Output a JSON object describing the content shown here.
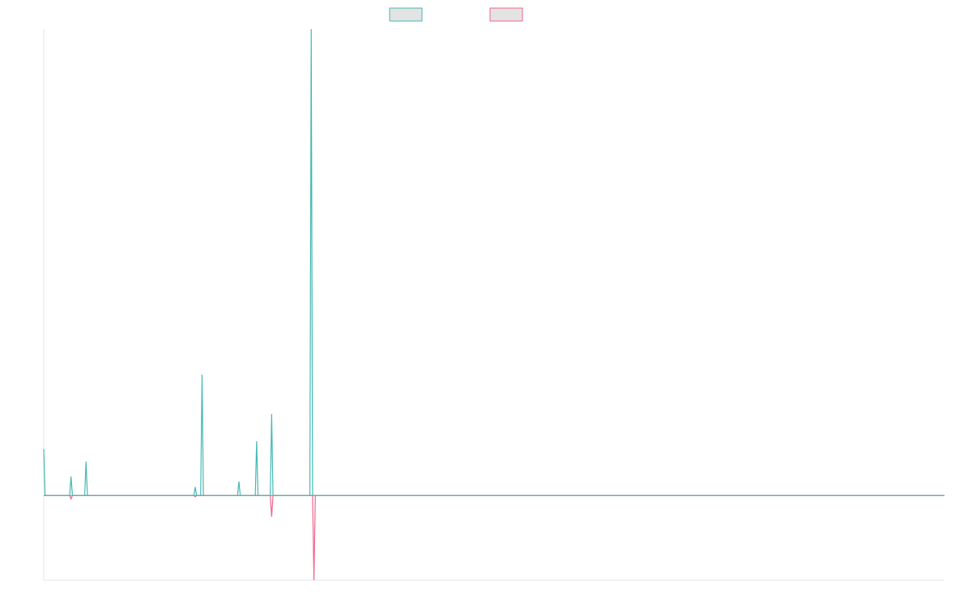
{
  "chart_data": {
    "type": "line",
    "title": "",
    "xlabel": "",
    "ylabel": "",
    "legend": {
      "placement": "top-center"
    },
    "grid": false,
    "x_range": [
      0,
      330
    ],
    "ylim": [
      -20,
      110
    ],
    "series": [
      {
        "color": "#45b8b5",
        "legend_fill": "#e3e3e3",
        "points": [
          [
            0,
            11
          ],
          [
            0.5,
            0
          ],
          [
            9.5,
            0
          ],
          [
            10,
            4.5
          ],
          [
            10.5,
            0
          ],
          [
            15,
            0
          ],
          [
            15.5,
            8
          ],
          [
            16,
            0
          ],
          [
            55,
            0
          ],
          [
            55.5,
            2
          ],
          [
            56,
            0
          ],
          [
            57.5,
            0
          ],
          [
            58,
            28.5
          ],
          [
            58.5,
            0
          ],
          [
            71,
            0
          ],
          [
            71.5,
            3.3
          ],
          [
            72,
            0
          ],
          [
            77.5,
            0
          ],
          [
            78,
            12.8
          ],
          [
            78.5,
            0
          ],
          [
            83,
            0
          ],
          [
            83.5,
            19.2
          ],
          [
            84,
            0
          ],
          [
            97.5,
            0
          ],
          [
            98,
            110
          ],
          [
            98.5,
            0
          ],
          [
            330,
            0
          ]
        ]
      },
      {
        "color": "#f0648a",
        "legend_fill": "#e3e3e3",
        "points": [
          [
            0,
            0
          ],
          [
            9.5,
            0
          ],
          [
            10,
            -0.8
          ],
          [
            10.5,
            0
          ],
          [
            55,
            0
          ],
          [
            55.5,
            -0.3
          ],
          [
            56,
            0
          ],
          [
            83,
            0
          ],
          [
            83.5,
            -5
          ],
          [
            84,
            0
          ],
          [
            98.5,
            0
          ],
          [
            99,
            -20
          ],
          [
            99.5,
            0
          ],
          [
            330,
            0
          ]
        ]
      }
    ]
  }
}
